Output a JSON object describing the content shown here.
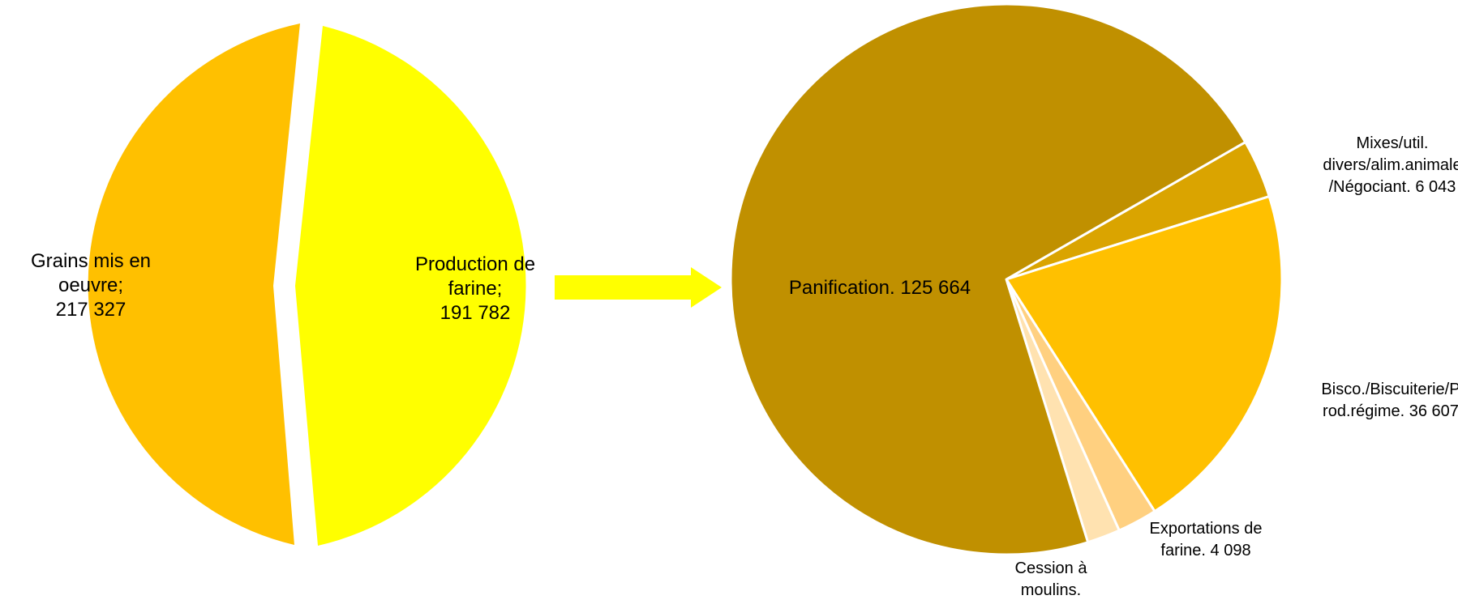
{
  "chart_data": [
    {
      "type": "pie",
      "title": "",
      "slices": [
        {
          "label": "Grains mis en oeuvre; 217 327",
          "value": 217327,
          "color": "#FFC000"
        },
        {
          "label": "Production de farine; 191 782",
          "value": 191782,
          "color": "#FFFF00"
        }
      ]
    },
    {
      "type": "pie",
      "title": "",
      "slices": [
        {
          "label": "Panification. 125 664",
          "value": 125664,
          "color": "#C09000"
        },
        {
          "label": "Mixes/util. divers/alim.animale /Négociant. 6 043",
          "value": 6043,
          "color": "#DAA400"
        },
        {
          "label": "Bisco./Biscuiterie/Prod.régime. 36 607",
          "value": 36607,
          "color": "#FFC000"
        },
        {
          "label": "Exportations de farine. 4 098",
          "value": 4098,
          "color": "#FFD080"
        },
        {
          "label": "Cession à moulins.",
          "value": 3400,
          "color": "#FFE2B0"
        }
      ]
    }
  ],
  "labels": {
    "grains": [
      "Grains mis en",
      "oeuvre;",
      "217 327"
    ],
    "production": [
      "Production de",
      "farine;",
      "191 782"
    ],
    "panification": [
      "Panification. 125 664"
    ],
    "mixes": [
      "Mixes/util.",
      "divers/alim.animale",
      "/Négociant. 6 043"
    ],
    "bisco": [
      "Bisco./Biscuiterie/P",
      "rod.régime. 36 607"
    ],
    "exportations": [
      "Exportations de",
      "farine. 4 098"
    ],
    "cession": [
      "Cession à",
      "moulins."
    ]
  },
  "arrow_color": "#FFFF00"
}
